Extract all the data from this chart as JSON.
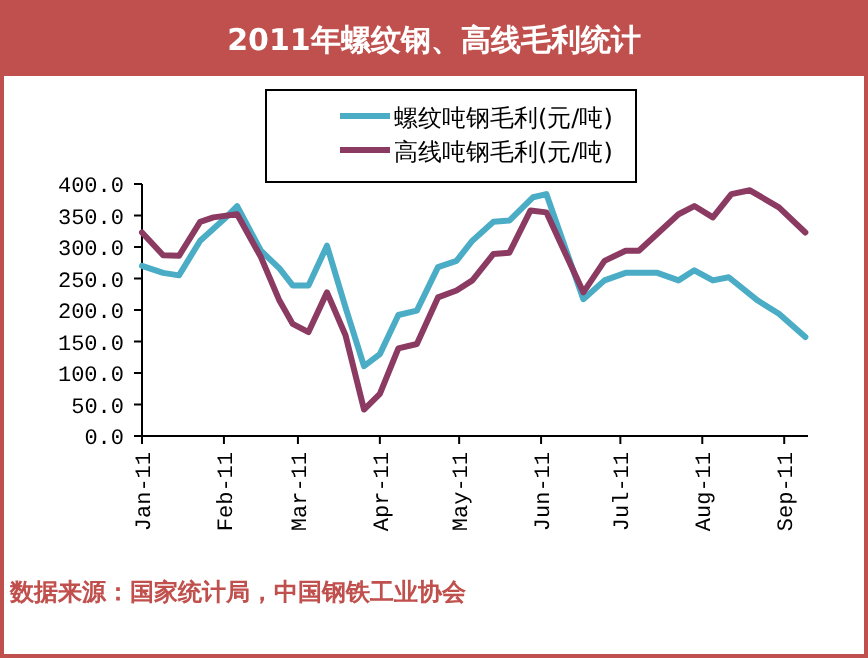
{
  "chart_data": {
    "type": "line",
    "title": "2011年螺纹钢、高线毛利统计",
    "annotations": [
      "数据来源：国家统计局，中国钢铁工业协会"
    ],
    "legend": "top",
    "grid": false,
    "marker": "none",
    "line_style": "solid",
    "xlim": [
      "2011-01-01",
      "2011-09-10"
    ],
    "xticks": [
      {
        "value": "2011-01-01",
        "label": "Jan-11"
      },
      {
        "value": "2011-02-01",
        "label": "Feb-11"
      },
      {
        "value": "2011-03-01",
        "label": "Mar-11"
      },
      {
        "value": "2011-04-01",
        "label": "Apr-11"
      },
      {
        "value": "2011-05-01",
        "label": "May-11"
      },
      {
        "value": "2011-06-01",
        "label": "Jun-11"
      },
      {
        "value": "2011-07-01",
        "label": "Jul-11"
      },
      {
        "value": "2011-08-01",
        "label": "Aug-11"
      },
      {
        "value": "2011-09-01",
        "label": "Sep-11"
      }
    ],
    "ylim": [
      0,
      400
    ],
    "yticks": [
      {
        "value": 0,
        "label": "0.0"
      },
      {
        "value": 50,
        "label": "50.0"
      },
      {
        "value": 100,
        "label": "100.0"
      },
      {
        "value": 150,
        "label": "150.0"
      },
      {
        "value": 200,
        "label": "200.0"
      },
      {
        "value": 250,
        "label": "250.0"
      },
      {
        "value": 300,
        "label": "300.0"
      },
      {
        "value": 350,
        "label": "350.0"
      },
      {
        "value": 400,
        "label": "400.0"
      }
    ],
    "series": [
      {
        "name": "螺纹吨钢毛利(元/吨)",
        "color": "#4bacc6",
        "x": [
          "2011-01-01",
          "2011-01-09",
          "2011-01-15",
          "2011-01-23",
          "2011-02-01",
          "2011-02-06",
          "2011-02-15",
          "2011-02-22",
          "2011-02-27",
          "2011-03-05",
          "2011-03-12",
          "2011-03-19",
          "2011-03-26",
          "2011-04-01",
          "2011-04-08",
          "2011-04-15",
          "2011-04-23",
          "2011-04-30",
          "2011-05-06",
          "2011-05-14",
          "2011-05-20",
          "2011-05-29",
          "2011-06-03",
          "2011-06-17",
          "2011-06-25",
          "2011-07-03",
          "2011-07-15",
          "2011-07-23",
          "2011-07-29",
          "2011-08-05",
          "2011-08-11",
          "2011-08-22",
          "2011-08-30",
          "2011-09-09"
        ],
        "values": [
          270,
          259,
          255,
          310,
          344,
          365,
          294,
          266,
          239,
          239,
          302,
          204,
          111,
          130,
          192,
          199,
          268,
          278,
          310,
          340,
          342,
          379,
          384,
          217,
          247,
          259,
          259,
          247,
          263,
          247,
          252,
          215,
          194,
          157
        ]
      },
      {
        "name": "高线吨钢毛利(元/吨)",
        "color": "#8b3a62",
        "x": [
          "2011-01-01",
          "2011-01-09",
          "2011-01-15",
          "2011-01-23",
          "2011-01-28",
          "2011-02-06",
          "2011-02-15",
          "2011-02-22",
          "2011-02-27",
          "2011-03-05",
          "2011-03-12",
          "2011-03-19",
          "2011-03-26",
          "2011-04-01",
          "2011-04-08",
          "2011-04-15",
          "2011-04-23",
          "2011-04-30",
          "2011-05-06",
          "2011-05-14",
          "2011-05-20",
          "2011-05-28",
          "2011-06-03",
          "2011-06-17",
          "2011-06-25",
          "2011-07-03",
          "2011-07-08",
          "2011-07-23",
          "2011-07-29",
          "2011-08-05",
          "2011-08-12",
          "2011-08-19",
          "2011-08-30",
          "2011-09-09"
        ],
        "values": [
          323,
          287,
          286,
          340,
          347,
          352,
          284,
          215,
          178,
          165,
          228,
          160,
          42,
          67,
          139,
          146,
          220,
          231,
          247,
          289,
          291,
          358,
          355,
          228,
          278,
          294,
          294,
          352,
          365,
          347,
          384,
          390,
          363,
          323
        ]
      }
    ]
  }
}
